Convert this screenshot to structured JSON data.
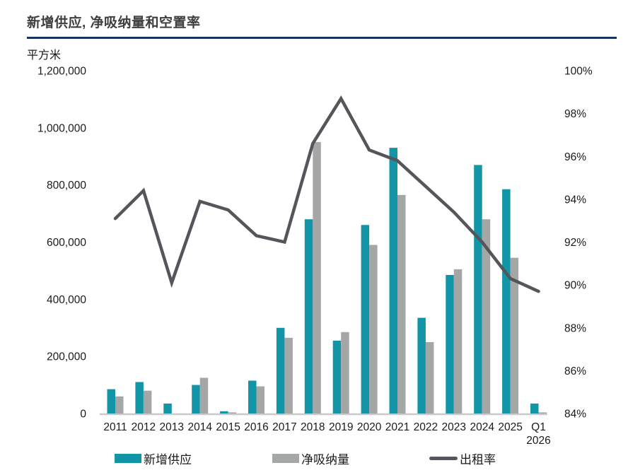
{
  "header": {
    "title": "新增供应, 净吸纳量和空置率",
    "unit_label": "平方米"
  },
  "colors": {
    "supply_teal": "#1195a7",
    "absorption_gray": "#a5a6a6",
    "occupancy_line": "#54565b",
    "underline_navy": "#17365d",
    "axis_line_gray": "#c9c9c9",
    "axis_text": "#1a1a1a",
    "title_text": "#3f3f3f"
  },
  "chart_data": {
    "type": "combo-bar-line",
    "title": "新增供应, 净吸纳量和空置率",
    "categories": [
      "2011",
      "2012",
      "2013",
      "2014",
      "2015",
      "2016",
      "2017",
      "2018",
      "2019",
      "2020",
      "2021",
      "2022",
      "2023",
      "2024",
      "2025",
      "Q1 2026"
    ],
    "series": [
      {
        "name": "新增供应",
        "type": "bar",
        "axis": "left",
        "color_key": "supply_teal",
        "values": [
          85000,
          110000,
          35000,
          100000,
          8000,
          115000,
          300000,
          680000,
          255000,
          660000,
          930000,
          335000,
          485000,
          870000,
          785000,
          35000
        ]
      },
      {
        "name": "净吸纳量",
        "type": "bar",
        "axis": "left",
        "color_key": "absorption_gray",
        "values": [
          60000,
          80000,
          0,
          125000,
          4000,
          95000,
          265000,
          950000,
          285000,
          590000,
          765000,
          250000,
          505000,
          680000,
          545000,
          4000
        ]
      },
      {
        "name": "出租率",
        "type": "line",
        "axis": "right",
        "color_key": "occupancy_line",
        "values": [
          93.1,
          94.4,
          90.1,
          93.9,
          93.5,
          92.3,
          92.0,
          96.6,
          98.7,
          96.3,
          95.8,
          94.6,
          93.4,
          92.0,
          90.3,
          89.7
        ]
      }
    ],
    "left_axis": {
      "label": "平方米",
      "min": 0,
      "max": 1200000,
      "tick_values": [
        0,
        200000,
        400000,
        600000,
        800000,
        1000000,
        1200000
      ],
      "tick_labels": [
        "0",
        "200,000",
        "400,000",
        "600,000",
        "800,000",
        "1,000,000",
        "1,200,000"
      ]
    },
    "right_axis": {
      "min": 84,
      "max": 100,
      "tick_values": [
        84,
        86,
        88,
        90,
        92,
        94,
        96,
        98,
        100
      ],
      "tick_labels": [
        "84%",
        "86%",
        "88%",
        "90%",
        "92%",
        "94%",
        "96%",
        "98%",
        "100%"
      ]
    },
    "grid": false,
    "legend_position": "bottom"
  }
}
